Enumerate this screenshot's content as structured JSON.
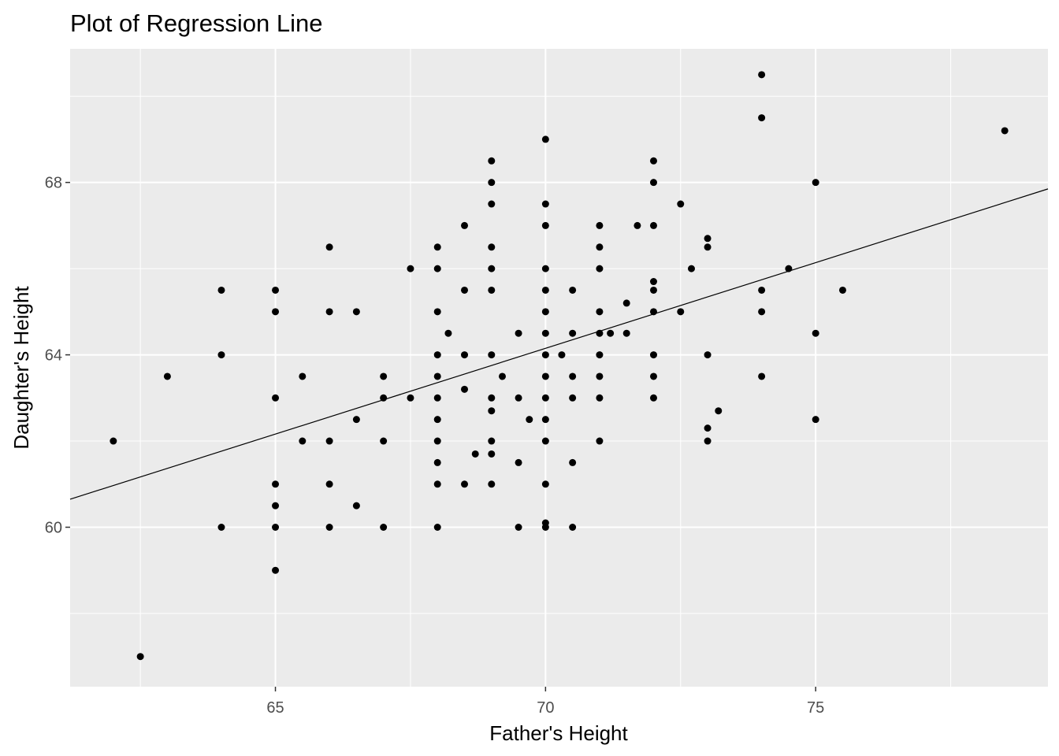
{
  "chart_data": {
    "type": "scatter",
    "title": "Plot of Regression Line",
    "xlabel": "Father's Height",
    "ylabel": "Daughter's Height",
    "xlim": [
      61.2,
      79.3
    ],
    "ylim": [
      56.3,
      71.1
    ],
    "x_ticks": [
      65,
      70,
      75
    ],
    "y_ticks": [
      60,
      64,
      68
    ],
    "x_tick_labels": [
      "65",
      "70",
      "75"
    ],
    "y_tick_labels": [
      "60",
      "64",
      "68"
    ],
    "x_minor": [
      62.5,
      67.5,
      72.5,
      77.5
    ],
    "y_minor": [
      58,
      62,
      66,
      70
    ],
    "grid": true,
    "legend": "none",
    "colors": {
      "panel": "#ebebeb",
      "grid": "#ffffff",
      "point": "#000000",
      "line": "#000000"
    },
    "regression_line": {
      "x": [
        61.2,
        79.3
      ],
      "y": [
        60.65,
        67.85
      ]
    },
    "points": [
      [
        62,
        62
      ],
      [
        62.5,
        57
      ],
      [
        63,
        63.5
      ],
      [
        64,
        65.5
      ],
      [
        64,
        64
      ],
      [
        64,
        60
      ],
      [
        65,
        65.5
      ],
      [
        65,
        65
      ],
      [
        65,
        63
      ],
      [
        65,
        61
      ],
      [
        65,
        60.5
      ],
      [
        65,
        60
      ],
      [
        65,
        59
      ],
      [
        65.5,
        63.5
      ],
      [
        65.5,
        62
      ],
      [
        66,
        66.5
      ],
      [
        66,
        65
      ],
      [
        66,
        62
      ],
      [
        66,
        61
      ],
      [
        66,
        60
      ],
      [
        66.5,
        65
      ],
      [
        66.5,
        62.5
      ],
      [
        66.5,
        60.5
      ],
      [
        67,
        63.5
      ],
      [
        67,
        63
      ],
      [
        67,
        62
      ],
      [
        67,
        60
      ],
      [
        67.5,
        66
      ],
      [
        67.5,
        63
      ],
      [
        68,
        66.5
      ],
      [
        68,
        66
      ],
      [
        68,
        65
      ],
      [
        68,
        64
      ],
      [
        68,
        63.5
      ],
      [
        68,
        63
      ],
      [
        68,
        62.5
      ],
      [
        68,
        62
      ],
      [
        68,
        61.5
      ],
      [
        68,
        61
      ],
      [
        68,
        60
      ],
      [
        68.2,
        64.5
      ],
      [
        68.5,
        67
      ],
      [
        68.5,
        65.5
      ],
      [
        68.5,
        64
      ],
      [
        68.5,
        63.2
      ],
      [
        68.5,
        61
      ],
      [
        68.7,
        61.7
      ],
      [
        69,
        68.5
      ],
      [
        69,
        68
      ],
      [
        69,
        67.5
      ],
      [
        69,
        66.5
      ],
      [
        69,
        66
      ],
      [
        69,
        65.5
      ],
      [
        69,
        64
      ],
      [
        69,
        63
      ],
      [
        69,
        62.7
      ],
      [
        69,
        62
      ],
      [
        69,
        61.7
      ],
      [
        69,
        61
      ],
      [
        69.2,
        63.5
      ],
      [
        69.5,
        64.5
      ],
      [
        69.5,
        63
      ],
      [
        69.5,
        61.5
      ],
      [
        69.5,
        60
      ],
      [
        69.7,
        62.5
      ],
      [
        70,
        69
      ],
      [
        70,
        67.5
      ],
      [
        70,
        67
      ],
      [
        70,
        66
      ],
      [
        70,
        65.5
      ],
      [
        70,
        65
      ],
      [
        70,
        64.5
      ],
      [
        70,
        64
      ],
      [
        70,
        63.5
      ],
      [
        70,
        63
      ],
      [
        70,
        62.5
      ],
      [
        70,
        62
      ],
      [
        70,
        61
      ],
      [
        70,
        60.1
      ],
      [
        70,
        60
      ],
      [
        70.3,
        64
      ],
      [
        70.5,
        65.5
      ],
      [
        70.5,
        64.5
      ],
      [
        70.5,
        63.5
      ],
      [
        70.5,
        63
      ],
      [
        70.5,
        61.5
      ],
      [
        70.5,
        60
      ],
      [
        71,
        67
      ],
      [
        71,
        66.5
      ],
      [
        71,
        66
      ],
      [
        71,
        65
      ],
      [
        71,
        64.5
      ],
      [
        71,
        64
      ],
      [
        71,
        63.5
      ],
      [
        71,
        63
      ],
      [
        71,
        62
      ],
      [
        71.2,
        64.5
      ],
      [
        71.5,
        65.2
      ],
      [
        71.5,
        64.5
      ],
      [
        71.7,
        67
      ],
      [
        72,
        68.5
      ],
      [
        72,
        68
      ],
      [
        72,
        67
      ],
      [
        72,
        65.7
      ],
      [
        72,
        65.5
      ],
      [
        72,
        65
      ],
      [
        72,
        64
      ],
      [
        72,
        63.5
      ],
      [
        72,
        63
      ],
      [
        72.5,
        67.5
      ],
      [
        72.5,
        65
      ],
      [
        72.7,
        66
      ],
      [
        73,
        66.7
      ],
      [
        73,
        66.5
      ],
      [
        73,
        64
      ],
      [
        73,
        62.3
      ],
      [
        73,
        62
      ],
      [
        73.2,
        62.7
      ],
      [
        74,
        70.5
      ],
      [
        74,
        69.5
      ],
      [
        74,
        65.5
      ],
      [
        74,
        65
      ],
      [
        74,
        63.5
      ],
      [
        74.5,
        66
      ],
      [
        75,
        68
      ],
      [
        75,
        64.5
      ],
      [
        75,
        62.5
      ],
      [
        75.5,
        65.5
      ],
      [
        78.5,
        69.2
      ]
    ]
  }
}
